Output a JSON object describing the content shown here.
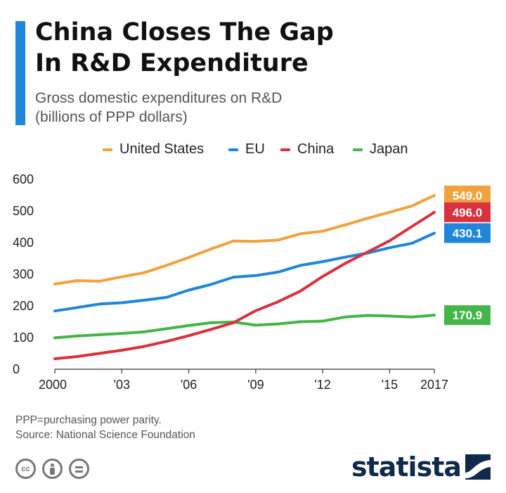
{
  "header": {
    "title": "China Closes The Gap\nIn R&D Expenditure",
    "subtitle": "Gross domestic expenditures on R&D\n(billions of PPP dollars)"
  },
  "footer": {
    "note": "PPP=purchasing power parity.\nSource: National Science Foundation",
    "brand": "statista",
    "license_icons": [
      "cc-icon",
      "attribution-icon",
      "no-derivatives-icon"
    ]
  },
  "colors": {
    "accent": "#1f86d9",
    "brand": "#0f2a4a"
  },
  "chart_data": {
    "type": "line",
    "title": "China Closes The Gap\nIn R&D Expenditure",
    "subtitle": "Gross domestic expenditures on R&D\n(billions of PPP dollars)",
    "xlabel": "",
    "ylabel": "",
    "x": [
      2000,
      2001,
      2002,
      2003,
      2004,
      2005,
      2006,
      2007,
      2008,
      2009,
      2010,
      2011,
      2012,
      2013,
      2014,
      2015,
      2016,
      2017
    ],
    "x_ticks": [
      {
        "value": 2000,
        "label": "2000"
      },
      {
        "value": 2003,
        "label": "'03"
      },
      {
        "value": 2006,
        "label": "'06"
      },
      {
        "value": 2009,
        "label": "'09"
      },
      {
        "value": 2012,
        "label": "'12"
      },
      {
        "value": 2015,
        "label": "'15"
      },
      {
        "value": 2017,
        "label": "2017"
      }
    ],
    "xlim": [
      2000,
      2017
    ],
    "ylim": [
      0,
      600
    ],
    "y_ticks": [
      0,
      100,
      200,
      300,
      400,
      500,
      600
    ],
    "grid": false,
    "legend_position": "top",
    "series": [
      {
        "name": "United States",
        "color": "#f0a23c",
        "values": [
          269,
          280,
          278,
          292,
          305,
          328,
          353,
          380,
          405,
          404,
          408,
          428,
          436,
          456,
          477,
          496,
          516,
          549.0
        ],
        "end_label": "549.0"
      },
      {
        "name": "EU",
        "color": "#1f86d9",
        "values": [
          184,
          195,
          206,
          210,
          218,
          227,
          250,
          268,
          291,
          296,
          307,
          328,
          340,
          354,
          367,
          384,
          398,
          430.1
        ],
        "end_label": "430.1"
      },
      {
        "name": "China",
        "color": "#d9313d",
        "values": [
          33,
          40,
          50,
          60,
          72,
          88,
          106,
          126,
          147,
          185,
          213,
          247,
          293,
          334,
          370,
          406,
          451,
          496.0
        ],
        "end_label": "496.0"
      },
      {
        "name": "Japan",
        "color": "#43b549",
        "values": [
          99,
          105,
          109,
          113,
          118,
          128,
          138,
          147,
          149,
          139,
          143,
          150,
          152,
          165,
          170,
          168,
          165,
          170.9
        ],
        "end_label": "170.9"
      }
    ]
  }
}
